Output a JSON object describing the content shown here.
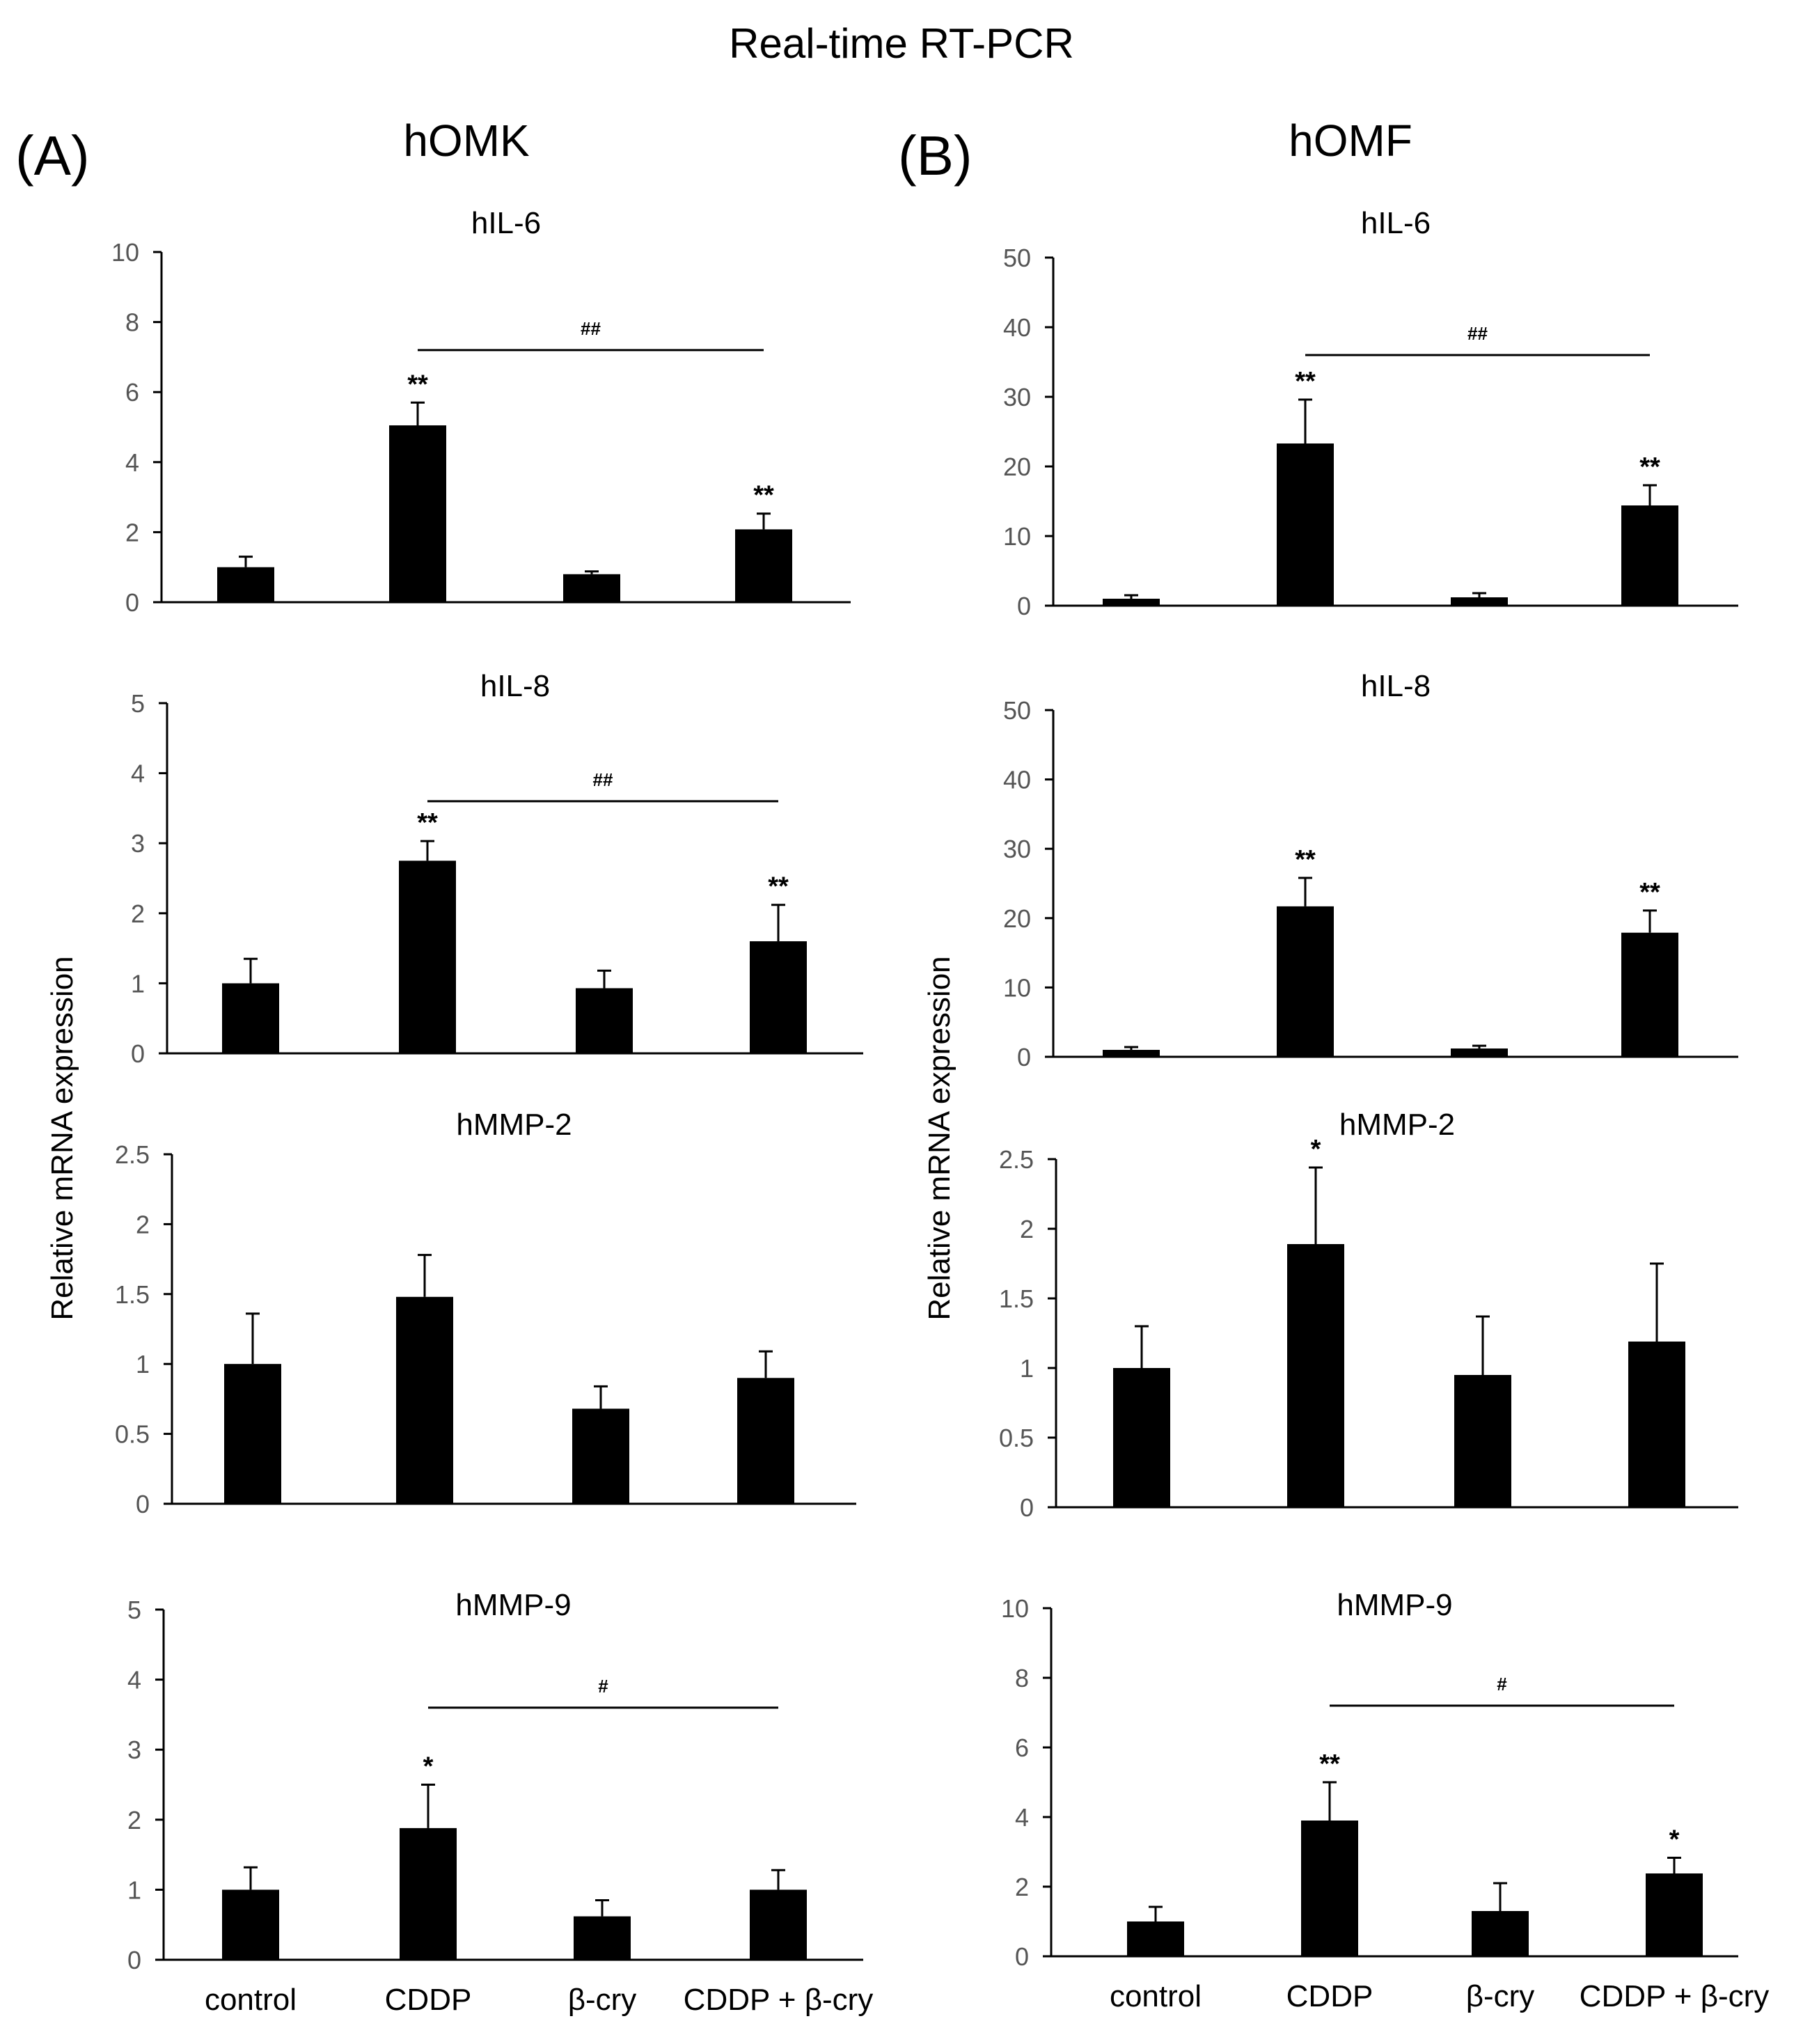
{
  "title": "Real-time RT-PCR",
  "panels": [
    {
      "label": "(A)",
      "cell": "hOMK"
    },
    {
      "label": "(B)",
      "cell": "hOMF"
    }
  ],
  "ylabel": "Relative mRNA expression",
  "chart_data": [
    {
      "type": "bar",
      "panel": "(A)",
      "cell": "hOMK",
      "title": "hIL-6",
      "categories": [
        "control",
        "CDDP",
        "β-cry",
        "CDDP + β-cry"
      ],
      "values": [
        1.0,
        5.05,
        0.8,
        2.08
      ],
      "errors": [
        0.3,
        0.65,
        0.08,
        0.45
      ],
      "ylim": [
        0,
        10
      ],
      "yticks": [
        0,
        2,
        4,
        6,
        8,
        10
      ],
      "significance": [
        "",
        "**",
        "",
        "**"
      ],
      "comparison": {
        "from": 1,
        "to": 3,
        "label": "##"
      }
    },
    {
      "type": "bar",
      "panel": "(A)",
      "cell": "hOMK",
      "title": "hIL-8",
      "categories": [
        "control",
        "CDDP",
        "β-cry",
        "CDDP + β-cry"
      ],
      "values": [
        1.0,
        2.75,
        0.93,
        1.6
      ],
      "errors": [
        0.35,
        0.28,
        0.25,
        0.52
      ],
      "ylim": [
        0,
        5
      ],
      "yticks": [
        0,
        1,
        2,
        3,
        4,
        5
      ],
      "significance": [
        "",
        "**",
        "",
        "**"
      ],
      "comparison": {
        "from": 1,
        "to": 3,
        "label": "##"
      }
    },
    {
      "type": "bar",
      "panel": "(A)",
      "cell": "hOMK",
      "title": "hMMP-2",
      "categories": [
        "control",
        "CDDP",
        "β-cry",
        "CDDP + β-cry"
      ],
      "values": [
        1.0,
        1.48,
        0.68,
        0.9
      ],
      "errors": [
        0.36,
        0.3,
        0.16,
        0.19
      ],
      "ylim": [
        0,
        2.5
      ],
      "yticks": [
        0,
        0.5,
        1,
        1.5,
        2,
        2.5
      ],
      "significance": [
        "",
        "",
        "",
        ""
      ]
    },
    {
      "type": "bar",
      "panel": "(A)",
      "cell": "hOMK",
      "title": "hMMP-9",
      "categories": [
        "control",
        "CDDP",
        "β-cry",
        "CDDP + β-cry"
      ],
      "values": [
        1.0,
        1.88,
        0.62,
        1.0
      ],
      "errors": [
        0.32,
        0.62,
        0.23,
        0.28
      ],
      "ylim": [
        0,
        5
      ],
      "yticks": [
        0,
        1,
        2,
        3,
        4,
        5
      ],
      "significance": [
        "",
        "*",
        "",
        ""
      ],
      "comparison": {
        "from": 1,
        "to": 3,
        "label": "#"
      }
    },
    {
      "type": "bar",
      "panel": "(B)",
      "cell": "hOMF",
      "title": "hIL-6",
      "categories": [
        "control",
        "CDDP",
        "β-cry",
        "CDDP + β-cry"
      ],
      "values": [
        1.0,
        23.3,
        1.2,
        14.4
      ],
      "errors": [
        0.5,
        6.3,
        0.6,
        2.9
      ],
      "ylim": [
        0,
        50
      ],
      "yticks": [
        0,
        10,
        20,
        30,
        40,
        50
      ],
      "significance": [
        "",
        "**",
        "",
        "**"
      ],
      "comparison": {
        "from": 1,
        "to": 3,
        "label": "##"
      }
    },
    {
      "type": "bar",
      "panel": "(B)",
      "cell": "hOMF",
      "title": "hIL-8",
      "categories": [
        "control",
        "CDDP",
        "β-cry",
        "CDDP + β-cry"
      ],
      "values": [
        1.0,
        21.7,
        1.2,
        17.9
      ],
      "errors": [
        0.4,
        4.1,
        0.4,
        3.2
      ],
      "ylim": [
        0,
        50
      ],
      "yticks": [
        0,
        10,
        20,
        30,
        40,
        50
      ],
      "significance": [
        "",
        "**",
        "",
        "**"
      ]
    },
    {
      "type": "bar",
      "panel": "(B)",
      "cell": "hOMF",
      "title": "hMMP-2",
      "categories": [
        "control",
        "CDDP",
        "β-cry",
        "CDDP + β-cry"
      ],
      "values": [
        1.0,
        1.89,
        0.95,
        1.19
      ],
      "errors": [
        0.3,
        0.55,
        0.42,
        0.56
      ],
      "ylim": [
        0,
        2.5
      ],
      "yticks": [
        0,
        0.5,
        1,
        1.5,
        2,
        2.5
      ],
      "significance": [
        "",
        "*",
        "",
        ""
      ]
    },
    {
      "type": "bar",
      "panel": "(B)",
      "cell": "hOMF",
      "title": "hMMP-9",
      "categories": [
        "control",
        "CDDP",
        "β-cry",
        "CDDP + β-cry"
      ],
      "values": [
        1.0,
        3.9,
        1.3,
        2.38
      ],
      "errors": [
        0.42,
        1.1,
        0.8,
        0.45
      ],
      "ylim": [
        0,
        10
      ],
      "yticks": [
        0,
        2,
        4,
        6,
        8,
        10
      ],
      "significance": [
        "",
        "**",
        "",
        "*"
      ],
      "comparison": {
        "from": 1,
        "to": 3,
        "label": "#"
      }
    }
  ]
}
